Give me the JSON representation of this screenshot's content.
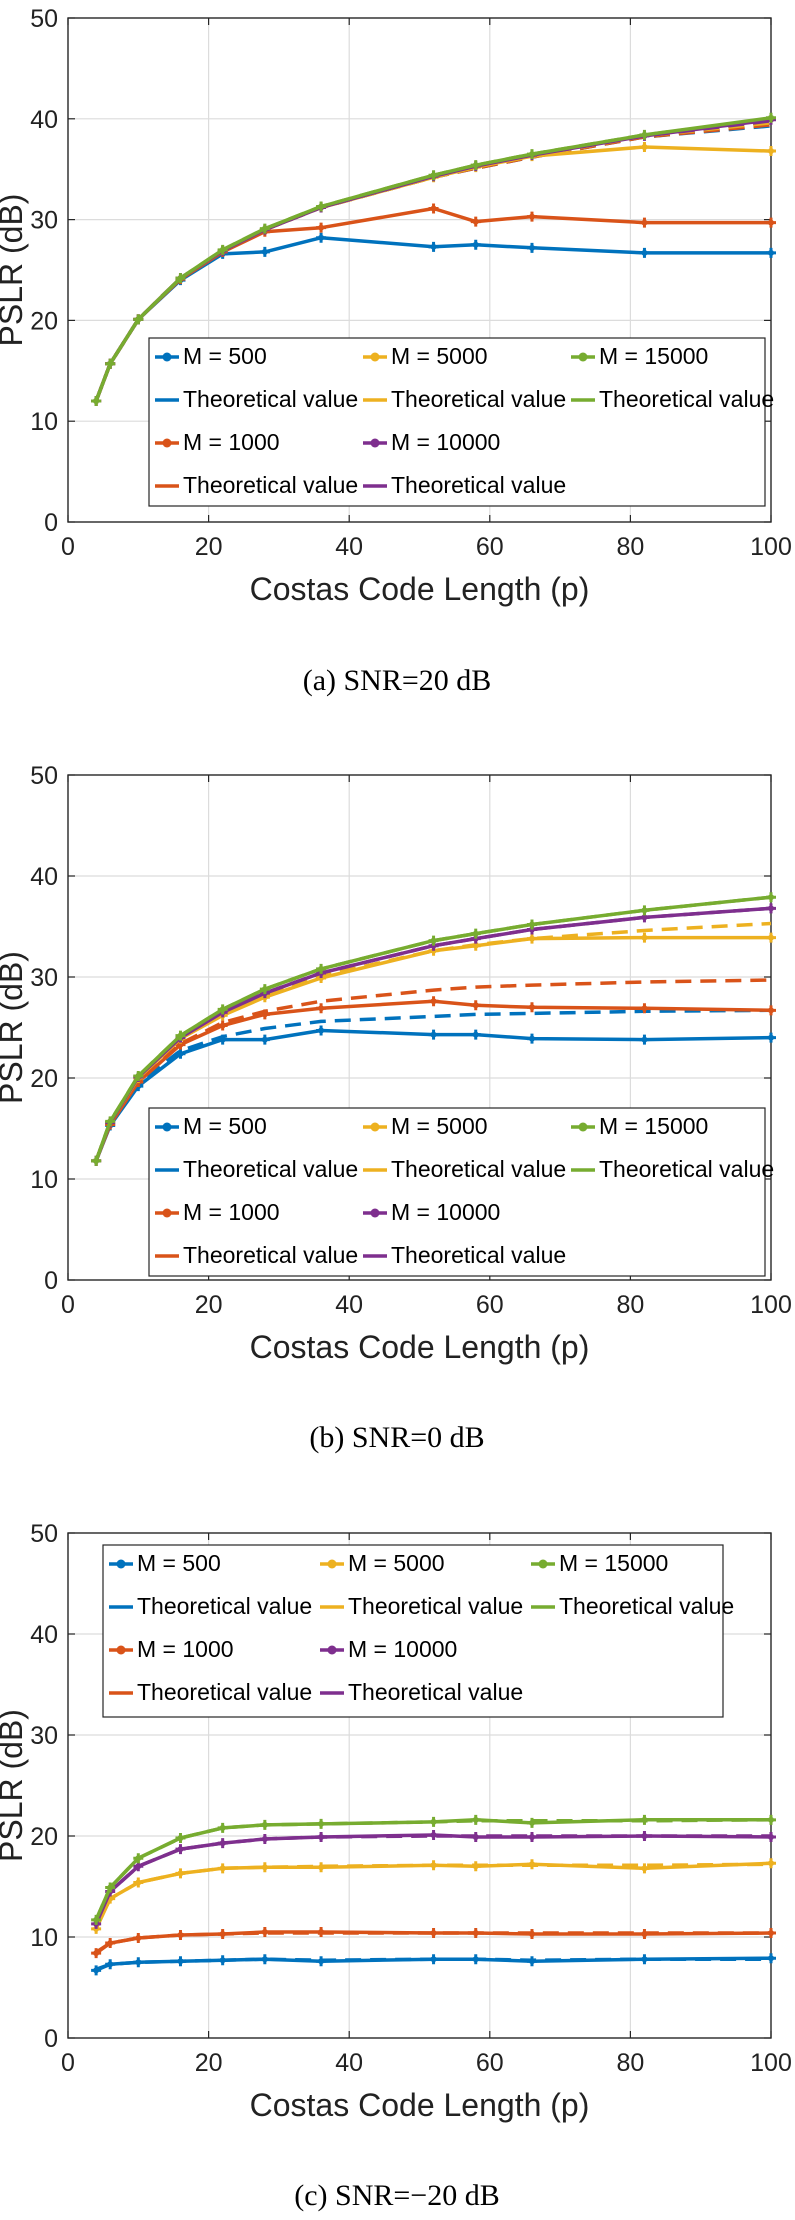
{
  "figure": {
    "captions": [
      "(a)  SNR=20  dB",
      "(b)  SNR=0  dB",
      "(c)  SNR=−20  dB"
    ]
  },
  "chart_data": [
    {
      "type": "line",
      "xlabel": "Costas Code Length (p)",
      "ylabel": "PSLR (dB)",
      "xlim": [
        0,
        100
      ],
      "ylim": [
        0,
        50
      ],
      "xticks": [
        0,
        20,
        40,
        60,
        80,
        100
      ],
      "yticks": [
        0,
        10,
        20,
        30,
        40,
        50
      ],
      "grid": true,
      "legend_position": "lower-right",
      "x": [
        4,
        6,
        10,
        16,
        22,
        28,
        36,
        52,
        58,
        66,
        82,
        100
      ],
      "series": [
        {
          "name": "M = 500",
          "color": "#0072BD",
          "style": "solid-marker",
          "values": [
            12,
            15.7,
            20.1,
            24,
            26.6,
            26.8,
            28.2,
            27.3,
            27.5,
            27.2,
            26.7,
            26.7
          ]
        },
        {
          "name": "Theoretical value",
          "color": "#0072BD",
          "style": "dashed",
          "values": [
            12,
            15.7,
            20.1,
            24.2,
            26.9,
            29,
            31.2,
            34.2,
            35.1,
            36.2,
            38.2,
            39.3
          ]
        },
        {
          "name": "M = 1000",
          "color": "#D95319",
          "style": "solid-marker",
          "values": [
            12,
            15.7,
            20.1,
            24.1,
            26.8,
            28.8,
            29.2,
            31.1,
            29.8,
            30.3,
            29.7,
            29.7
          ]
        },
        {
          "name": "Theoretical value",
          "color": "#D95319",
          "style": "dashed",
          "values": [
            12,
            15.7,
            20.1,
            24.2,
            26.9,
            29,
            31.2,
            34.2,
            35.1,
            36.2,
            38.2,
            39.4
          ]
        },
        {
          "name": "M = 5000",
          "color": "#EDB120",
          "style": "solid-marker",
          "values": [
            12,
            15.7,
            20.1,
            24.2,
            26.9,
            29,
            31.2,
            34.2,
            35.2,
            36.3,
            37.2,
            36.8
          ]
        },
        {
          "name": "Theoretical value",
          "color": "#EDB120",
          "style": "dashed",
          "values": [
            12,
            15.7,
            20.1,
            24.2,
            26.9,
            29,
            31.2,
            34.2,
            35.2,
            36.3,
            38.3,
            39.6
          ]
        },
        {
          "name": "M = 10000",
          "color": "#7E2F8E",
          "style": "solid-marker",
          "values": [
            12,
            15.7,
            20.1,
            24.2,
            26.9,
            29,
            31.2,
            34.3,
            35.3,
            36.4,
            38.3,
            39.9
          ]
        },
        {
          "name": "Theoretical value",
          "color": "#7E2F8E",
          "style": "dashed",
          "values": [
            12,
            15.7,
            20.1,
            24.2,
            26.9,
            29,
            31.2,
            34.3,
            35.3,
            36.4,
            38.3,
            39.8
          ]
        },
        {
          "name": "M = 15000",
          "color": "#77AC30",
          "style": "solid-marker",
          "values": [
            12,
            15.7,
            20.1,
            24.2,
            27,
            29.1,
            31.3,
            34.4,
            35.4,
            36.5,
            38.4,
            40.1
          ]
        },
        {
          "name": "Theoretical value",
          "color": "#77AC30",
          "style": "dashed",
          "values": [
            12,
            15.7,
            20.1,
            24.2,
            27,
            29.1,
            31.3,
            34.4,
            35.4,
            36.5,
            38.4,
            40
          ]
        }
      ]
    },
    {
      "type": "line",
      "xlabel": "Costas Code Length (p)",
      "ylabel": "PSLR (dB)",
      "xlim": [
        0,
        100
      ],
      "ylim": [
        0,
        50
      ],
      "xticks": [
        0,
        20,
        40,
        60,
        80,
        100
      ],
      "yticks": [
        0,
        10,
        20,
        30,
        40,
        50
      ],
      "grid": true,
      "legend_position": "lower-right",
      "x": [
        4,
        6,
        10,
        16,
        22,
        28,
        36,
        52,
        58,
        66,
        82,
        100
      ],
      "series": [
        {
          "name": "M = 500",
          "color": "#0072BD",
          "style": "solid-marker",
          "values": [
            11.8,
            15.3,
            19.2,
            22.4,
            23.8,
            23.8,
            24.7,
            24.3,
            24.3,
            23.9,
            23.8,
            24
          ]
        },
        {
          "name": "Theoretical value",
          "color": "#0072BD",
          "style": "dashed",
          "values": [
            11.8,
            15.4,
            19.5,
            22.7,
            24.1,
            24.9,
            25.6,
            26.1,
            26.3,
            26.4,
            26.6,
            26.7
          ]
        },
        {
          "name": "M = 1000",
          "color": "#D95319",
          "style": "solid-marker",
          "values": [
            11.8,
            15.4,
            19.6,
            23.3,
            25.2,
            26.3,
            26.9,
            27.6,
            27.2,
            27,
            26.9,
            26.7
          ]
        },
        {
          "name": "Theoretical value",
          "color": "#D95319",
          "style": "dashed",
          "values": [
            11.8,
            15.4,
            19.7,
            23.4,
            25.5,
            26.6,
            27.6,
            28.7,
            29,
            29.2,
            29.5,
            29.7
          ]
        },
        {
          "name": "M = 5000",
          "color": "#EDB120",
          "style": "solid-marker",
          "values": [
            11.8,
            15.6,
            20,
            23.9,
            26.2,
            28,
            29.9,
            32.6,
            33.1,
            33.8,
            33.9,
            33.9
          ]
        },
        {
          "name": "Theoretical value",
          "color": "#EDB120",
          "style": "dashed",
          "values": [
            11.8,
            15.6,
            20,
            23.9,
            26.3,
            28.1,
            30.1,
            32.6,
            33.2,
            33.8,
            34.6,
            35.3
          ]
        },
        {
          "name": "M = 10000",
          "color": "#7E2F8E",
          "style": "solid-marker",
          "values": [
            11.8,
            15.6,
            20.1,
            24,
            26.5,
            28.4,
            30.4,
            33.1,
            33.8,
            34.7,
            35.9,
            36.8
          ]
        },
        {
          "name": "Theoretical value",
          "color": "#7E2F8E",
          "style": "dashed",
          "values": [
            11.8,
            15.6,
            20.1,
            24,
            26.5,
            28.4,
            30.4,
            33.1,
            33.8,
            34.7,
            35.9,
            36.8
          ]
        },
        {
          "name": "M = 15000",
          "color": "#77AC30",
          "style": "solid-marker",
          "values": [
            11.8,
            15.7,
            20.2,
            24.2,
            26.8,
            28.8,
            30.8,
            33.6,
            34.3,
            35.2,
            36.6,
            37.9
          ]
        },
        {
          "name": "Theoretical value",
          "color": "#77AC30",
          "style": "dashed",
          "values": [
            11.8,
            15.7,
            20.2,
            24.2,
            26.8,
            28.8,
            30.8,
            33.6,
            34.3,
            35.2,
            36.6,
            37.9
          ]
        }
      ]
    },
    {
      "type": "line",
      "xlabel": "Costas Code Length (p)",
      "ylabel": "PSLR (dB)",
      "xlim": [
        0,
        100
      ],
      "ylim": [
        0,
        50
      ],
      "xticks": [
        0,
        20,
        40,
        60,
        80,
        100
      ],
      "yticks": [
        0,
        10,
        20,
        30,
        40,
        50
      ],
      "grid": true,
      "legend_position": "top",
      "x": [
        4,
        6,
        10,
        16,
        22,
        28,
        36,
        52,
        58,
        66,
        82,
        100
      ],
      "series": [
        {
          "name": "M = 500",
          "color": "#0072BD",
          "style": "solid-marker",
          "values": [
            6.7,
            7.3,
            7.5,
            7.6,
            7.7,
            7.8,
            7.6,
            7.8,
            7.8,
            7.6,
            7.8,
            7.9
          ]
        },
        {
          "name": "Theoretical value",
          "color": "#0072BD",
          "style": "dashed",
          "values": [
            6.8,
            7.3,
            7.5,
            7.6,
            7.7,
            7.8,
            7.7,
            7.8,
            7.8,
            7.7,
            7.8,
            7.8
          ]
        },
        {
          "name": "M = 1000",
          "color": "#D95319",
          "style": "solid-marker",
          "values": [
            8.4,
            9.4,
            9.9,
            10.2,
            10.3,
            10.5,
            10.5,
            10.4,
            10.4,
            10.3,
            10.3,
            10.4
          ]
        },
        {
          "name": "Theoretical value",
          "color": "#D95319",
          "style": "dashed",
          "values": [
            8.5,
            9.4,
            9.9,
            10.2,
            10.3,
            10.4,
            10.4,
            10.4,
            10.4,
            10.4,
            10.4,
            10.4
          ]
        },
        {
          "name": "M = 5000",
          "color": "#EDB120",
          "style": "solid-marker",
          "values": [
            10.8,
            13.8,
            15.4,
            16.3,
            16.8,
            16.9,
            16.9,
            17.1,
            17,
            17.2,
            16.8,
            17.3
          ]
        },
        {
          "name": "Theoretical value",
          "color": "#EDB120",
          "style": "dashed",
          "values": [
            10.9,
            13.8,
            15.4,
            16.3,
            16.8,
            16.9,
            17,
            17.1,
            17.1,
            17.1,
            17.1,
            17.2
          ]
        },
        {
          "name": "M = 10000",
          "color": "#7E2F8E",
          "style": "solid-marker",
          "values": [
            11.3,
            14.5,
            17,
            18.7,
            19.3,
            19.7,
            19.9,
            20.1,
            19.9,
            19.9,
            20,
            19.9
          ]
        },
        {
          "name": "Theoretical value",
          "color": "#7E2F8E",
          "style": "dashed",
          "values": [
            11.3,
            14.5,
            17,
            18.7,
            19.3,
            19.7,
            19.9,
            20,
            20,
            20,
            20,
            20
          ]
        },
        {
          "name": "M = 15000",
          "color": "#77AC30",
          "style": "solid-marker",
          "values": [
            11.7,
            14.9,
            17.8,
            19.8,
            20.8,
            21.1,
            21.2,
            21.4,
            21.6,
            21.3,
            21.6,
            21.6
          ]
        },
        {
          "name": "Theoretical value",
          "color": "#77AC30",
          "style": "dashed",
          "values": [
            11.7,
            14.9,
            17.8,
            19.8,
            20.8,
            21.1,
            21.2,
            21.4,
            21.5,
            21.5,
            21.5,
            21.6
          ]
        }
      ]
    }
  ]
}
